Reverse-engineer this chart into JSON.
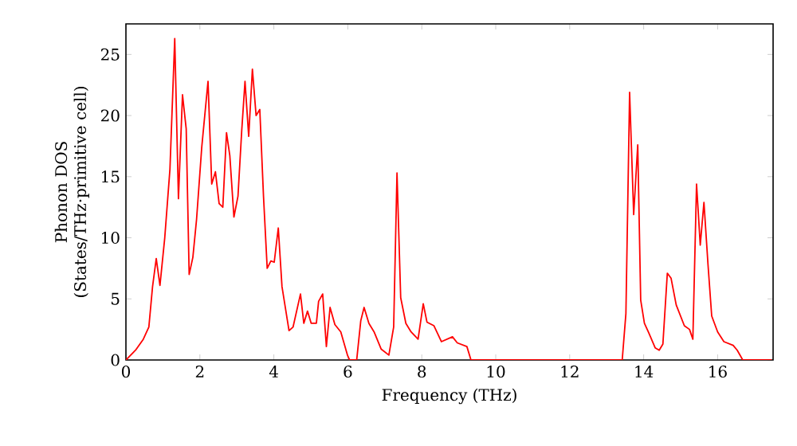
{
  "chart_data": {
    "type": "line",
    "xlabel": "Frequency (THz)",
    "ylabel": "Phonon DOS (States/THz·primitive cell)",
    "xlim": [
      0,
      17.5
    ],
    "ylim": [
      0,
      27.5
    ],
    "xticks": [
      0,
      2,
      4,
      6,
      8,
      10,
      12,
      14,
      16
    ],
    "yticks": [
      0,
      5,
      10,
      15,
      20,
      25
    ],
    "marker": "none",
    "line_style": "solid",
    "series": [
      {
        "color": "#ff0000",
        "x": [
          0,
          0.26,
          0.47,
          0.62,
          0.72,
          0.82,
          0.92,
          1.05,
          1.19,
          1.32,
          1.42,
          1.53,
          1.63,
          1.71,
          1.81,
          1.91,
          2.05,
          2.22,
          2.32,
          2.42,
          2.52,
          2.62,
          2.72,
          2.81,
          2.92,
          3.03,
          3.13,
          3.22,
          3.32,
          3.42,
          3.52,
          3.62,
          3.72,
          3.82,
          3.92,
          4.01,
          4.12,
          4.22,
          4.41,
          4.52,
          4.72,
          4.81,
          4.91,
          5.01,
          5.15,
          5.21,
          5.32,
          5.42,
          5.52,
          5.65,
          5.81,
          5.99,
          6.05,
          6.24,
          6.35,
          6.44,
          6.57,
          6.71,
          6.9,
          7.11,
          7.24,
          7.33,
          7.43,
          7.57,
          7.71,
          7.9,
          8.04,
          8.14,
          8.33,
          8.53,
          8.83,
          8.96,
          9.22,
          9.33,
          13.42,
          13.52,
          13.62,
          13.73,
          13.84,
          13.92,
          14.02,
          14.14,
          14.31,
          14.42,
          14.52,
          14.64,
          14.74,
          14.88,
          15.1,
          15.24,
          15.33,
          15.43,
          15.53,
          15.63,
          15.74,
          15.84,
          16.0,
          16.17,
          16.42,
          16.53,
          16.68,
          17.46
        ],
        "values": [
          0,
          0.8,
          1.7,
          2.7,
          6,
          8.3,
          6.1,
          10,
          15.6,
          26.3,
          13.2,
          21.7,
          18.9,
          7,
          8.4,
          11.5,
          17.4,
          22.8,
          14.4,
          15.4,
          12.8,
          12.5,
          18.6,
          16.7,
          11.7,
          13.4,
          18.7,
          22.8,
          18.3,
          23.8,
          20,
          20.5,
          13.4,
          7.5,
          8.1,
          8,
          10.8,
          6,
          2.4,
          2.7,
          5.4,
          3,
          4,
          3,
          3,
          4.8,
          5.4,
          1.1,
          4.3,
          2.9,
          2.3,
          0.4,
          0,
          0,
          3.2,
          4.3,
          3,
          2.3,
          0.9,
          0.4,
          2.7,
          15.3,
          5.1,
          3,
          2.3,
          1.7,
          4.6,
          3.1,
          2.8,
          1.5,
          1.9,
          1.4,
          1.1,
          0,
          0,
          3.8,
          21.9,
          11.9,
          17.6,
          4.9,
          3,
          2.2,
          1,
          0.8,
          1.3,
          7.1,
          6.7,
          4.5,
          2.8,
          2.5,
          1.7,
          14.4,
          9.4,
          12.9,
          7.8,
          3.6,
          2.3,
          1.5,
          1.2,
          0.8,
          0,
          0
        ]
      }
    ]
  }
}
